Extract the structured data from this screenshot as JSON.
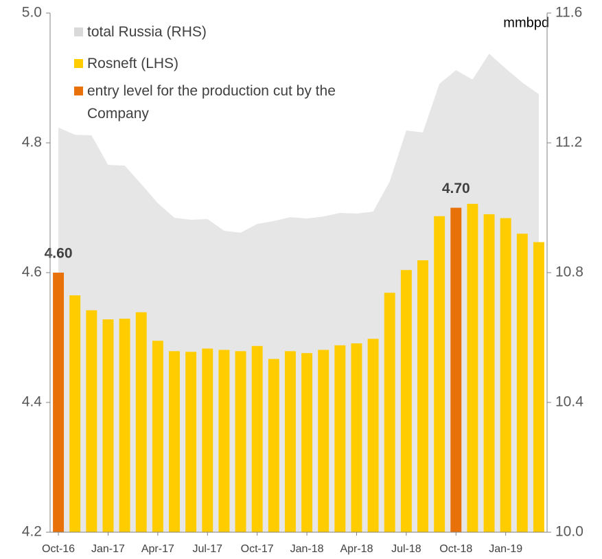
{
  "chart_data": {
    "type": "bar",
    "unit_label": "mmbpd",
    "categories": [
      "Oct-16",
      null,
      null,
      "Jan-17",
      null,
      null,
      "Apr-17",
      null,
      null,
      "Jul-17",
      null,
      null,
      "Oct-17",
      null,
      null,
      "Jan-18",
      null,
      null,
      "Apr-18",
      null,
      null,
      "Jul-18",
      null,
      null,
      "Oct-18",
      null,
      null,
      "Jan-19",
      null,
      null
    ],
    "series": [
      {
        "name": "total Russia (RHS)",
        "type": "area",
        "axis": "y2",
        "color": "#e6e6e6",
        "values": [
          11.247,
          11.225,
          11.223,
          11.132,
          11.13,
          11.073,
          11.014,
          10.969,
          10.963,
          10.965,
          10.929,
          10.923,
          10.95,
          10.959,
          10.971,
          10.967,
          10.973,
          10.984,
          10.982,
          10.988,
          11.081,
          11.238,
          11.232,
          11.382,
          11.424,
          11.395,
          11.475,
          11.429,
          11.386,
          11.35
        ]
      },
      {
        "name": "Rosneft (LHS)",
        "type": "bar",
        "color": "#ffcc00",
        "values": [
          null,
          4.565,
          4.542,
          4.528,
          4.529,
          4.539,
          4.495,
          4.479,
          4.478,
          4.483,
          4.481,
          4.479,
          4.487,
          4.467,
          4.479,
          4.476,
          4.481,
          4.488,
          4.491,
          4.498,
          4.569,
          4.604,
          4.619,
          4.687,
          null,
          4.706,
          4.69,
          4.684,
          4.66,
          4.647
        ]
      },
      {
        "name": "entry level for the production cut by the Company",
        "type": "bar",
        "color": "#e8710a",
        "values": [
          4.6,
          null,
          null,
          null,
          null,
          null,
          null,
          null,
          null,
          null,
          null,
          null,
          null,
          null,
          null,
          null,
          null,
          null,
          null,
          null,
          null,
          null,
          null,
          null,
          4.7,
          null,
          null,
          null,
          null,
          null
        ],
        "value_labels": [
          "4.60",
          null,
          null,
          null,
          null,
          null,
          null,
          null,
          null,
          null,
          null,
          null,
          null,
          null,
          null,
          null,
          null,
          null,
          null,
          null,
          null,
          null,
          null,
          null,
          "4.70",
          null,
          null,
          null,
          null,
          null
        ]
      }
    ],
    "ylim": [
      4.2,
      5.0
    ],
    "yticks": [
      4.2,
      4.4,
      4.6,
      4.8,
      {
        "value": 5,
        "label": "5.0"
      }
    ],
    "y2lim": [
      10.0,
      11.6
    ],
    "y2ticks": [
      {
        "value": 10,
        "label": "10.0"
      },
      10.4,
      10.8,
      11.2,
      11.6
    ],
    "grid": false
  }
}
